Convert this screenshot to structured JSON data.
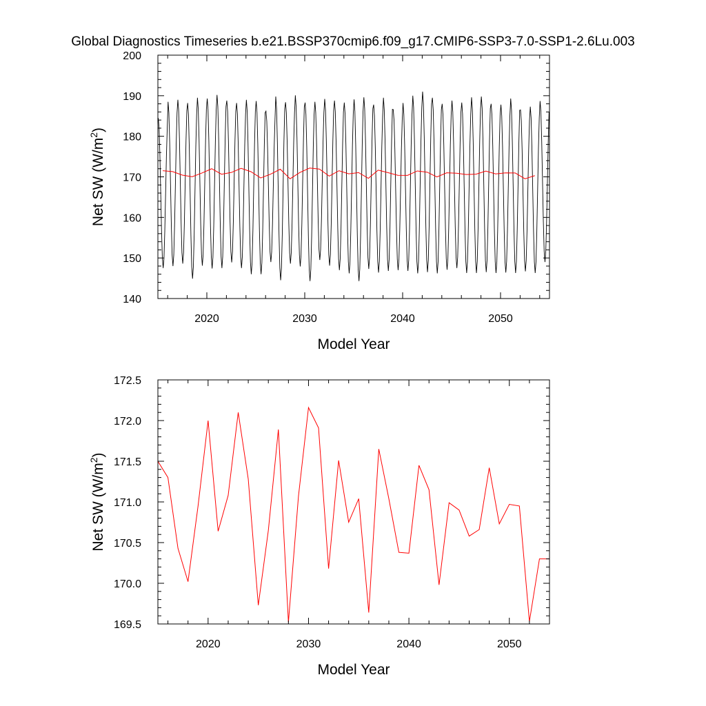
{
  "figure": {
    "title": "Global Diagnostics Timeseries b.e21.BSSP370cmip6.f09_g17.CMIP6-SSP3-7.0-SSP1-2.6Lu.003"
  },
  "colors": {
    "monthly": "#000000",
    "annual": "#ff0000",
    "axis": "#000000",
    "background": "#ffffff"
  },
  "chart_data": [
    {
      "type": "line",
      "panel": "top",
      "xlabel": "Model Year",
      "ylabel_main": "Net SW (W/m",
      "ylabel_sup": "2",
      "ylabel_close": ")",
      "xlim": [
        2015,
        2055
      ],
      "ylim": [
        140,
        200
      ],
      "x_major_ticks": [
        2020,
        2030,
        2040,
        2050
      ],
      "x_tick_labels": [
        "2020",
        "2030",
        "2040",
        "2050"
      ],
      "x_minor_step": 2,
      "y_major_ticks": [
        140,
        150,
        160,
        170,
        180,
        190,
        200
      ],
      "y_tick_labels": [
        "140",
        "150",
        "160",
        "170",
        "180",
        "190",
        "200"
      ],
      "y_minor_step": 2,
      "grid": false,
      "series": [
        {
          "style": "monthly seasonal cycle (black)",
          "color": "#000000",
          "x_start": 2015.04,
          "x_step": 0.08333,
          "annual_max": [
            184.5,
            188.5,
            189.0,
            188.2,
            189.5,
            189.3,
            190.2,
            188.8,
            188.2,
            189.0,
            188.7,
            186.2,
            189.8,
            188.4,
            190.1,
            188.3,
            188.5,
            189.2,
            188.8,
            188.3,
            189.1,
            189.6,
            187.8,
            189.5,
            186.6,
            188.2,
            190.0,
            191.0,
            189.5,
            188.0,
            188.8,
            188.3,
            189.6,
            189.8,
            188.0,
            187.8,
            189.3,
            186.5,
            187.3,
            188.7
          ],
          "annual_min": [
            147.5,
            148.0,
            148.6,
            144.9,
            148.1,
            147.4,
            147.5,
            148.9,
            147.5,
            146.0,
            146.0,
            149.0,
            144.5,
            148.6,
            147.9,
            144.3,
            149.5,
            148.1,
            147.0,
            146.2,
            144.3,
            147.3,
            146.4,
            146.8,
            147.0,
            146.8,
            146.2,
            146.5,
            146.2,
            147.1,
            147.5,
            146.3,
            146.3,
            146.5,
            146.3,
            146.4,
            146.3,
            146.7,
            146.3,
            149.0
          ]
        },
        {
          "style": "annual mean (red)",
          "color": "#ff0000",
          "x": [
            2015.5,
            2016.5,
            2017.5,
            2018.5,
            2019.5,
            2020.5,
            2021.5,
            2022.5,
            2023.5,
            2024.5,
            2025.5,
            2026.5,
            2027.5,
            2028.5,
            2029.5,
            2030.5,
            2031.5,
            2032.5,
            2033.5,
            2034.5,
            2035.5,
            2036.5,
            2037.5,
            2038.5,
            2039.5,
            2040.5,
            2041.5,
            2042.5,
            2043.5,
            2044.5,
            2045.5,
            2046.5,
            2047.5,
            2048.5,
            2049.5,
            2050.5,
            2051.5,
            2052.5,
            2053.5
          ],
          "y": [
            171.5,
            171.3,
            170.43,
            170.02,
            170.95,
            172.0,
            170.64,
            171.08,
            172.1,
            171.28,
            169.73,
            170.65,
            171.89,
            169.52,
            171.07,
            172.16,
            171.91,
            170.18,
            171.51,
            170.75,
            171.04,
            169.64,
            171.65,
            171.04,
            170.38,
            170.37,
            171.45,
            171.15,
            169.98,
            170.99,
            170.9,
            170.58,
            170.66,
            171.42,
            170.73,
            170.97,
            170.95,
            169.53,
            170.3
          ]
        }
      ]
    },
    {
      "type": "line",
      "panel": "bottom",
      "xlabel": "Model Year",
      "ylabel_main": "Net SW (W/m",
      "ylabel_sup": "2",
      "ylabel_close": ")",
      "xlim": [
        2015,
        2054
      ],
      "ylim": [
        169.5,
        172.5
      ],
      "x_major_ticks": [
        2020,
        2030,
        2040,
        2050
      ],
      "x_tick_labels": [
        "2020",
        "2030",
        "2040",
        "2050"
      ],
      "x_minor_step": 2,
      "y_major_ticks": [
        169.5,
        170.0,
        170.5,
        171.0,
        171.5,
        172.0,
        172.5
      ],
      "y_tick_labels": [
        "169.5",
        "170.0",
        "170.5",
        "171.0",
        "171.5",
        "172.0",
        "172.5"
      ],
      "y_minor_step": 0.1,
      "grid": false,
      "series": [
        {
          "style": "annual mean (red)",
          "color": "#ff0000",
          "x": [
            2015.0,
            2016.0,
            2017.0,
            2018.0,
            2019.0,
            2020.0,
            2021.0,
            2022.0,
            2023.0,
            2024.0,
            2025.0,
            2026.0,
            2027.0,
            2028.0,
            2029.0,
            2030.0,
            2031.0,
            2032.0,
            2033.0,
            2034.0,
            2035.0,
            2036.0,
            2037.0,
            2038.0,
            2039.0,
            2040.0,
            2041.0,
            2042.0,
            2043.0,
            2044.0,
            2045.0,
            2046.0,
            2047.0,
            2048.0,
            2049.0,
            2050.0,
            2051.0,
            2052.0,
            2053.0,
            2054.0
          ],
          "y": [
            171.5,
            171.3,
            170.43,
            170.02,
            170.95,
            172.0,
            170.64,
            171.08,
            172.1,
            171.28,
            169.73,
            170.65,
            171.89,
            169.52,
            171.07,
            172.16,
            171.91,
            170.18,
            171.51,
            170.75,
            171.04,
            169.64,
            171.65,
            171.04,
            170.38,
            170.37,
            171.45,
            171.15,
            169.98,
            170.99,
            170.9,
            170.58,
            170.66,
            171.42,
            170.73,
            170.97,
            170.95,
            169.53,
            170.3,
            170.3
          ]
        }
      ]
    }
  ]
}
